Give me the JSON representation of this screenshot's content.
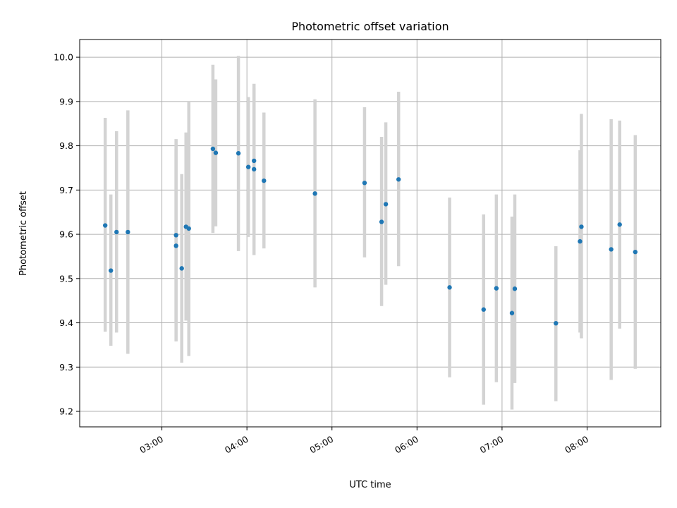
{
  "chart_data": {
    "type": "scatter",
    "title": "Photometric offset variation",
    "xlabel": "UTC time",
    "ylabel": "Photometric offset",
    "xlim": [
      "02:02",
      "08:52"
    ],
    "ylim": [
      9.165,
      10.04
    ],
    "x_ticks": [
      "03:00",
      "04:00",
      "05:00",
      "06:00",
      "07:00",
      "08:00"
    ],
    "y_ticks": [
      9.2,
      9.3,
      9.4,
      9.5,
      9.6,
      9.7,
      9.8,
      9.9,
      10.0
    ],
    "y_tick_labels": [
      "9.2",
      "9.3",
      "9.4",
      "9.5",
      "9.6",
      "9.7",
      "9.8",
      "9.9",
      "10.0"
    ],
    "grid": true,
    "point_color": "#1f77b4",
    "errorbar_color": "#d3d3d3",
    "points": [
      {
        "time": "02:20",
        "y": 9.62,
        "lo": 9.38,
        "hi": 9.863
      },
      {
        "time": "02:24",
        "y": 9.518,
        "lo": 9.348,
        "hi": 9.69
      },
      {
        "time": "02:28",
        "y": 9.605,
        "lo": 9.378,
        "hi": 9.833
      },
      {
        "time": "02:36",
        "y": 9.605,
        "lo": 9.33,
        "hi": 9.88
      },
      {
        "time": "03:10",
        "y": 9.598,
        "lo": 9.358,
        "hi": 9.793
      },
      {
        "time": "03:10",
        "y": 9.574,
        "lo": 9.4,
        "hi": 9.815
      },
      {
        "time": "03:14",
        "y": 9.523,
        "lo": 9.31,
        "hi": 9.736
      },
      {
        "time": "03:17",
        "y": 9.617,
        "lo": 9.405,
        "hi": 9.83
      },
      {
        "time": "03:19",
        "y": 9.613,
        "lo": 9.325,
        "hi": 9.9
      },
      {
        "time": "03:36",
        "y": 9.793,
        "lo": 9.603,
        "hi": 9.983
      },
      {
        "time": "03:38",
        "y": 9.784,
        "lo": 9.618,
        "hi": 9.95
      },
      {
        "time": "03:54",
        "y": 9.783,
        "lo": 9.562,
        "hi": 10.003
      },
      {
        "time": "04:01",
        "y": 9.752,
        "lo": 9.594,
        "hi": 9.91
      },
      {
        "time": "04:05",
        "y": 9.747,
        "lo": 9.553,
        "hi": 9.94
      },
      {
        "time": "04:05",
        "y": 9.766,
        "lo": 9.6,
        "hi": 9.93
      },
      {
        "time": "04:12",
        "y": 9.721,
        "lo": 9.568,
        "hi": 9.875
      },
      {
        "time": "04:48",
        "y": 9.692,
        "lo": 9.48,
        "hi": 9.905
      },
      {
        "time": "05:23",
        "y": 9.716,
        "lo": 9.548,
        "hi": 9.887
      },
      {
        "time": "05:35",
        "y": 9.628,
        "lo": 9.438,
        "hi": 9.82
      },
      {
        "time": "05:38",
        "y": 9.668,
        "lo": 9.486,
        "hi": 9.853
      },
      {
        "time": "05:47",
        "y": 9.724,
        "lo": 9.528,
        "hi": 9.922
      },
      {
        "time": "06:23",
        "y": 9.48,
        "lo": 9.277,
        "hi": 9.683
      },
      {
        "time": "06:47",
        "y": 9.43,
        "lo": 9.215,
        "hi": 9.645
      },
      {
        "time": "06:56",
        "y": 9.478,
        "lo": 9.266,
        "hi": 9.69
      },
      {
        "time": "07:07",
        "y": 9.422,
        "lo": 9.204,
        "hi": 9.64
      },
      {
        "time": "07:09",
        "y": 9.477,
        "lo": 9.264,
        "hi": 9.69
      },
      {
        "time": "07:38",
        "y": 9.399,
        "lo": 9.223,
        "hi": 9.573
      },
      {
        "time": "07:55",
        "y": 9.584,
        "lo": 9.378,
        "hi": 9.79
      },
      {
        "time": "07:56",
        "y": 9.617,
        "lo": 9.365,
        "hi": 9.872
      },
      {
        "time": "08:17",
        "y": 9.566,
        "lo": 9.271,
        "hi": 9.86
      },
      {
        "time": "08:23",
        "y": 9.622,
        "lo": 9.387,
        "hi": 9.857
      },
      {
        "time": "08:34",
        "y": 9.56,
        "lo": 9.296,
        "hi": 9.824
      }
    ]
  }
}
